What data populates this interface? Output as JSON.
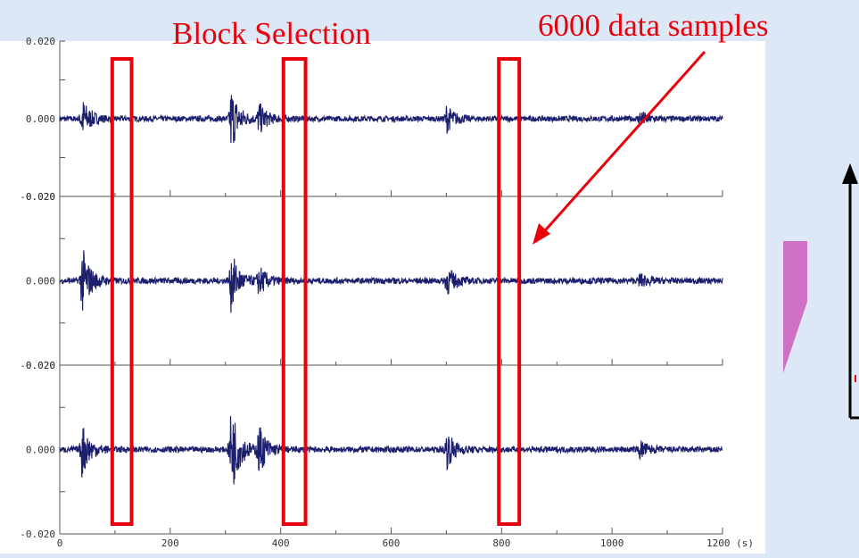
{
  "annotations": {
    "block_selection": "Block Selection",
    "data_samples": "6000 data samples"
  },
  "colors": {
    "background": "#dde8f6",
    "annotation": "#e8000b",
    "signal": "#1c1f6e",
    "arrow_block": "#d070c6"
  },
  "chart_data": {
    "type": "line",
    "x_axis": {
      "range": [
        0,
        1200
      ],
      "ticks": [
        "0",
        "200",
        "400",
        "600",
        "800",
        "1000",
        "1200 (s)"
      ]
    },
    "channels": [
      {
        "y_range": [
          -0.02,
          0.02
        ],
        "ticks": [
          "0.020",
          "0.000",
          "-0.020"
        ],
        "bursts": [
          {
            "t": 40,
            "amp": 0.0055
          },
          {
            "t": 310,
            "amp": 0.0085
          },
          {
            "t": 360,
            "amp": 0.004
          },
          {
            "t": 700,
            "amp": 0.0035
          },
          {
            "t": 1050,
            "amp": 0.002
          }
        ]
      },
      {
        "y_range": [
          -0.02,
          0.02
        ],
        "ticks": [
          "0.020",
          "0.000",
          "-0.020"
        ],
        "bursts": [
          {
            "t": 40,
            "amp": 0.0085
          },
          {
            "t": 310,
            "amp": 0.007
          },
          {
            "t": 360,
            "amp": 0.0035
          },
          {
            "t": 700,
            "amp": 0.0035
          },
          {
            "t": 1050,
            "amp": 0.0015
          }
        ]
      },
      {
        "y_range": [
          -0.02,
          0.02
        ],
        "ticks": [
          "0.020",
          "0.000",
          "-0.020"
        ],
        "bursts": [
          {
            "t": 40,
            "amp": 0.0065
          },
          {
            "t": 310,
            "amp": 0.0115
          },
          {
            "t": 360,
            "amp": 0.006
          },
          {
            "t": 700,
            "amp": 0.0045
          },
          {
            "t": 1050,
            "amp": 0.002
          }
        ]
      }
    ],
    "selected_blocks_s": [
      [
        95,
        130
      ],
      [
        405,
        445
      ],
      [
        795,
        832
      ]
    ]
  }
}
